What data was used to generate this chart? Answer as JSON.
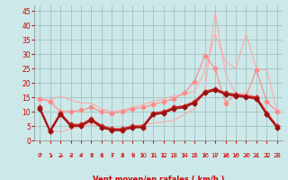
{
  "x": [
    0,
    1,
    2,
    3,
    4,
    5,
    6,
    7,
    8,
    9,
    10,
    11,
    12,
    13,
    14,
    15,
    16,
    17,
    18,
    19,
    20,
    21,
    22,
    23
  ],
  "series": [
    {
      "name": "upper_envelope_light",
      "color": "#ffaaaa",
      "linewidth": 0.8,
      "marker": null,
      "data": [
        14.5,
        14.0,
        15.5,
        14.0,
        13.0,
        13.0,
        11.0,
        10.0,
        10.5,
        11.5,
        12.5,
        13.5,
        14.5,
        15.5,
        16.0,
        17.0,
        24.0,
        37.0,
        27.5,
        25.0,
        37.0,
        25.0,
        24.5,
        10.5
      ]
    },
    {
      "name": "peak_line_light",
      "color": "#ffaaaa",
      "linewidth": 0.8,
      "marker": null,
      "data": [
        11.5,
        3.0,
        3.0,
        4.0,
        5.0,
        5.5,
        5.0,
        3.5,
        3.5,
        5.0,
        5.5,
        6.0,
        6.5,
        7.0,
        9.0,
        11.0,
        17.5,
        44.5,
        23.5,
        16.0,
        16.5,
        15.0,
        10.5,
        4.5
      ]
    },
    {
      "name": "rafales_markers",
      "color": "#ff8888",
      "linewidth": 0.8,
      "marker": "D",
      "markersize": 2.5,
      "data": [
        14.5,
        13.5,
        10.0,
        10.0,
        10.5,
        11.5,
        10.0,
        9.5,
        10.0,
        11.0,
        11.5,
        12.5,
        13.5,
        14.5,
        16.5,
        20.5,
        29.5,
        25.0,
        13.0,
        16.0,
        15.5,
        24.5,
        13.5,
        10.0
      ]
    },
    {
      "name": "moyen_markers",
      "color": "#ff8888",
      "linewidth": 0.8,
      "marker": "D",
      "markersize": 2.5,
      "data": [
        11.0,
        3.0,
        9.0,
        5.0,
        5.0,
        7.0,
        4.5,
        3.5,
        3.5,
        4.5,
        4.5,
        9.0,
        9.5,
        11.0,
        11.5,
        13.0,
        16.5,
        17.5,
        16.0,
        15.5,
        15.5,
        14.5,
        9.0,
        4.5
      ]
    },
    {
      "name": "dark_line1",
      "color": "#cc2222",
      "linewidth": 1.2,
      "marker": "D",
      "markersize": 2.5,
      "data": [
        11.5,
        3.5,
        9.5,
        5.5,
        5.5,
        7.5,
        5.0,
        4.0,
        4.0,
        5.0,
        5.0,
        9.5,
        10.0,
        11.5,
        12.0,
        13.5,
        17.0,
        18.0,
        16.5,
        16.0,
        15.5,
        15.0,
        9.5,
        5.0
      ]
    },
    {
      "name": "dark_line2",
      "color": "#991111",
      "linewidth": 1.2,
      "marker": "D",
      "markersize": 2.5,
      "data": [
        11.0,
        3.0,
        9.0,
        5.0,
        5.0,
        7.0,
        4.5,
        3.5,
        3.5,
        4.5,
        4.5,
        9.0,
        9.5,
        11.0,
        11.5,
        13.0,
        16.5,
        17.5,
        16.0,
        15.5,
        15.0,
        14.5,
        9.0,
        4.5
      ]
    }
  ],
  "xlabel": "Vent moyen/en rafales ( km/h )",
  "xlim": [
    -0.5,
    23.5
  ],
  "ylim": [
    0,
    47
  ],
  "yticks": [
    0,
    5,
    10,
    15,
    20,
    25,
    30,
    35,
    40,
    45
  ],
  "xticks": [
    0,
    1,
    2,
    3,
    4,
    5,
    6,
    7,
    8,
    9,
    10,
    11,
    12,
    13,
    14,
    15,
    16,
    17,
    18,
    19,
    20,
    21,
    22,
    23
  ],
  "bg_color": "#cce8e8",
  "grid_color": "#99bbbb",
  "text_color": "#cc0000",
  "tick_color": "#cc0000",
  "arrow_chars": [
    "↗",
    "↘",
    "→",
    "↙",
    "↙",
    "↙",
    "↓",
    "↓",
    "↓",
    "↓",
    "↓",
    "↓",
    "↓",
    "↓",
    "↓",
    "↓",
    "↓",
    "↓",
    "↙",
    "↙",
    "↙",
    "↙",
    "↓",
    "↓"
  ]
}
